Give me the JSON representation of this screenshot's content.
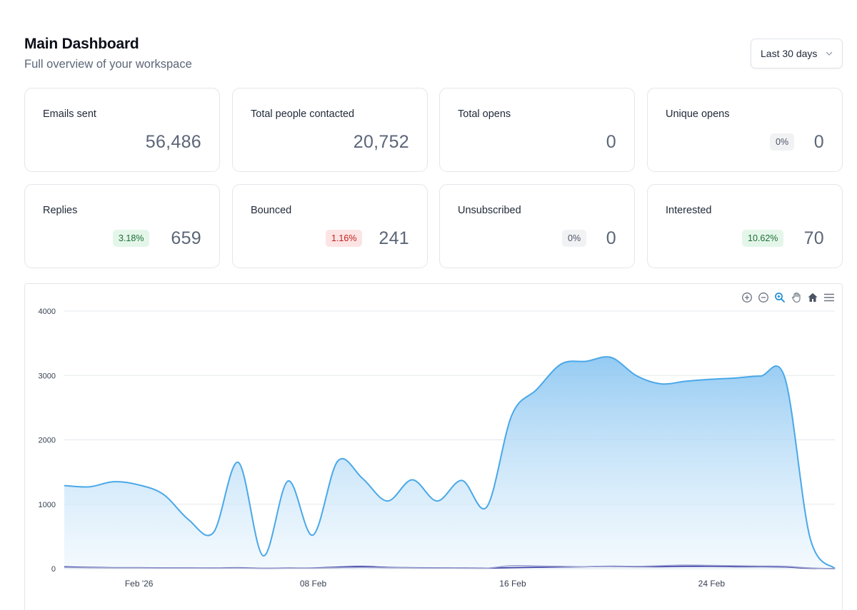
{
  "header": {
    "title": "Main Dashboard",
    "subtitle": "Full overview of your workspace"
  },
  "date_range": {
    "selected": "Last 30 days"
  },
  "stats": [
    {
      "label": "Emails sent",
      "value": "56,486",
      "badge": null
    },
    {
      "label": "Total people contacted",
      "value": "20,752",
      "badge": null
    },
    {
      "label": "Total opens",
      "value": "0",
      "badge": null
    },
    {
      "label": "Unique opens",
      "value": "0",
      "badge": "0%",
      "badge_tone": "gray"
    },
    {
      "label": "Replies",
      "value": "659",
      "badge": "3.18%",
      "badge_tone": "green"
    },
    {
      "label": "Bounced",
      "value": "241",
      "badge": "1.16%",
      "badge_tone": "red"
    },
    {
      "label": "Unsubscribed",
      "value": "0",
      "badge": "0%",
      "badge_tone": "gray"
    },
    {
      "label": "Interested",
      "value": "70",
      "badge": "10.62%",
      "badge_tone": "green"
    }
  ],
  "toolbar": {
    "icons": [
      "zoom-in-icon",
      "zoom-out-icon",
      "selection-zoom-icon",
      "pan-hand-icon",
      "reset-home-icon",
      "menu-icon"
    ]
  },
  "chart_data": {
    "type": "area",
    "x_labels": [
      "Feb '26",
      "08 Feb",
      "16 Feb",
      "24 Feb"
    ],
    "y_ticks": [
      0,
      1000,
      2000,
      3000,
      4000
    ],
    "ylim": [
      0,
      4000
    ],
    "grid": true,
    "series": [
      {
        "color": "#4aa8e8",
        "values": [
          1290,
          1270,
          1350,
          1300,
          1150,
          760,
          560,
          1650,
          200,
          1360,
          520,
          1670,
          1400,
          1050,
          1380,
          1050,
          1370,
          960,
          2380,
          2780,
          3180,
          3220,
          3280,
          3000,
          2870,
          2910,
          2940,
          2960,
          2990,
          2950,
          480,
          0
        ]
      },
      {
        "color": "#3b3fa8",
        "values": [
          30,
          20,
          15,
          15,
          12,
          12,
          10,
          15,
          5,
          10,
          10,
          25,
          35,
          20,
          15,
          12,
          10,
          8,
          15,
          20,
          25,
          30,
          35,
          30,
          30,
          35,
          35,
          30,
          30,
          25,
          5,
          0
        ]
      },
      {
        "color": "#9da3cf",
        "values": [
          20,
          15,
          12,
          12,
          10,
          10,
          8,
          10,
          5,
          8,
          8,
          15,
          20,
          15,
          12,
          10,
          8,
          8,
          45,
          40,
          35,
          30,
          40,
          35,
          45,
          55,
          50,
          45,
          40,
          35,
          10,
          0
        ]
      }
    ]
  }
}
